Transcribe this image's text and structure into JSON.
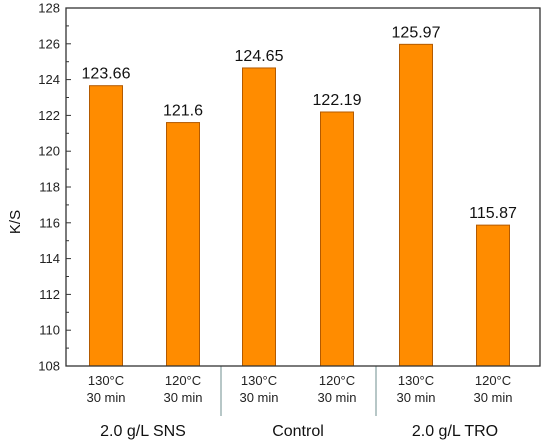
{
  "chart_data": {
    "type": "bar",
    "ylabel": "K/S",
    "ylim": [
      108,
      128
    ],
    "yticks": [
      108,
      110,
      112,
      114,
      116,
      118,
      120,
      122,
      124,
      126,
      128
    ],
    "bar_color": "#FF8C00",
    "bar_edge_color": "#B35A00",
    "bars": [
      {
        "temp": "130°C",
        "time": "30 min",
        "group": "2.0 g/L SNS",
        "value": 123.66,
        "label": "123.66"
      },
      {
        "temp": "120°C",
        "time": "30 min",
        "group": "2.0 g/L SNS",
        "value": 121.6,
        "label": "121.6"
      },
      {
        "temp": "130°C",
        "time": "30 min",
        "group": "Control",
        "value": 124.65,
        "label": "124.65"
      },
      {
        "temp": "120°C",
        "time": "30 min",
        "group": "Control",
        "value": 122.19,
        "label": "122.19"
      },
      {
        "temp": "130°C",
        "time": "30 min",
        "group": "2.0 g/L TRO",
        "value": 125.97,
        "label": "125.97"
      },
      {
        "temp": "120°C",
        "time": "30 min",
        "group": "2.0 g/L TRO",
        "value": 115.87,
        "label": "115.87"
      }
    ],
    "groups": [
      "2.0 g/L SNS",
      "Control",
      "2.0 g/L TRO"
    ]
  }
}
